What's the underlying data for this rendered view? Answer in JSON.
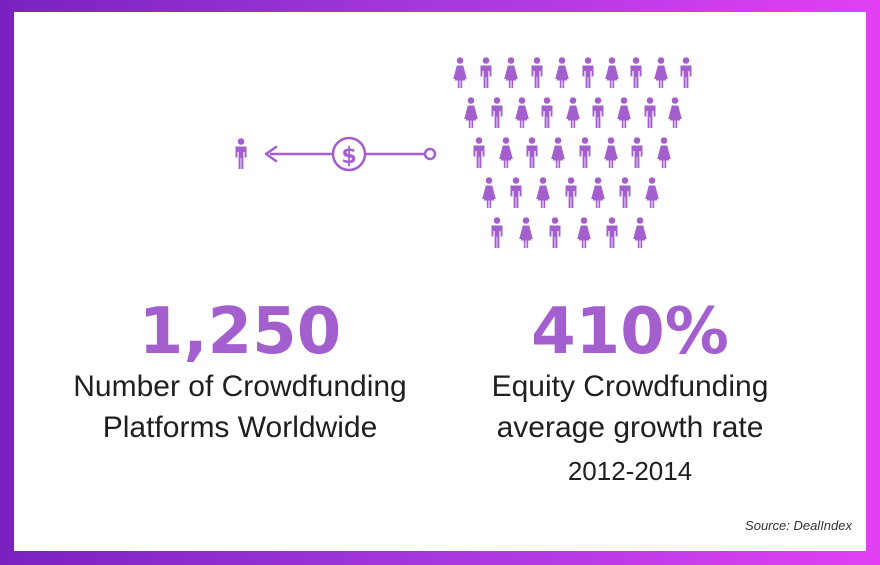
{
  "colors": {
    "accent": "#a45fcf",
    "border_start": "#7a22c0",
    "border_end": "#e240f2"
  },
  "icons": [
    "person-icon",
    "arrow-left-icon",
    "dollar-coin-icon",
    "crowd-icon"
  ],
  "stats": {
    "platforms": {
      "value": "1,250",
      "label_line1": "Number of Crowdfunding",
      "label_line2": "Platforms Worldwide"
    },
    "growth": {
      "value": "410%",
      "label_line1": "Equity Crowdfunding",
      "label_line2": "average growth rate",
      "label_line3": "2012-2014"
    }
  },
  "source": "Source: DealIndex"
}
